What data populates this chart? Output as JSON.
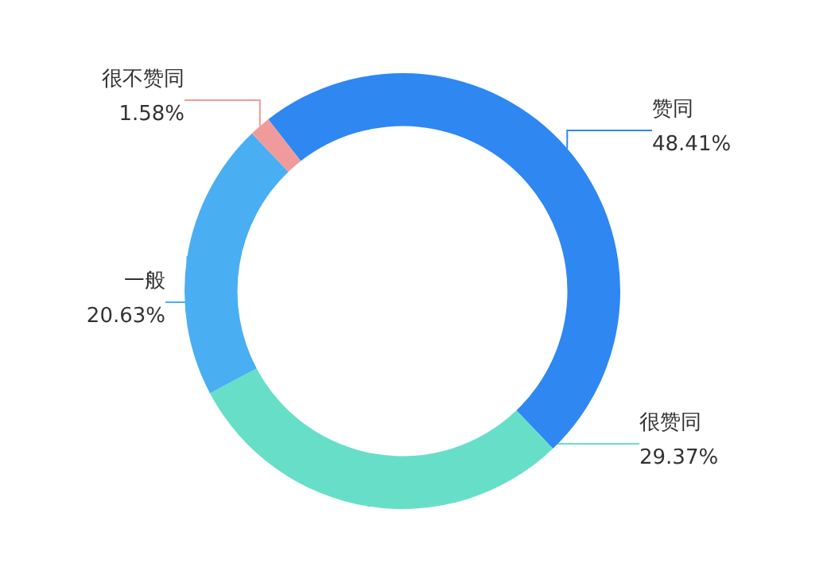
{
  "chart_data": {
    "type": "donut",
    "categories": [
      "赞同",
      "很赞同",
      "一般",
      "很不赞同"
    ],
    "values": [
      48.41,
      29.37,
      20.63,
      1.58
    ],
    "value_labels": [
      "48.41%",
      "29.37%",
      "20.63%",
      "1.58%"
    ],
    "colors": [
      "#2f87f1",
      "#67dfc8",
      "#4aaef2",
      "#ef9b9b"
    ],
    "legend": false
  }
}
